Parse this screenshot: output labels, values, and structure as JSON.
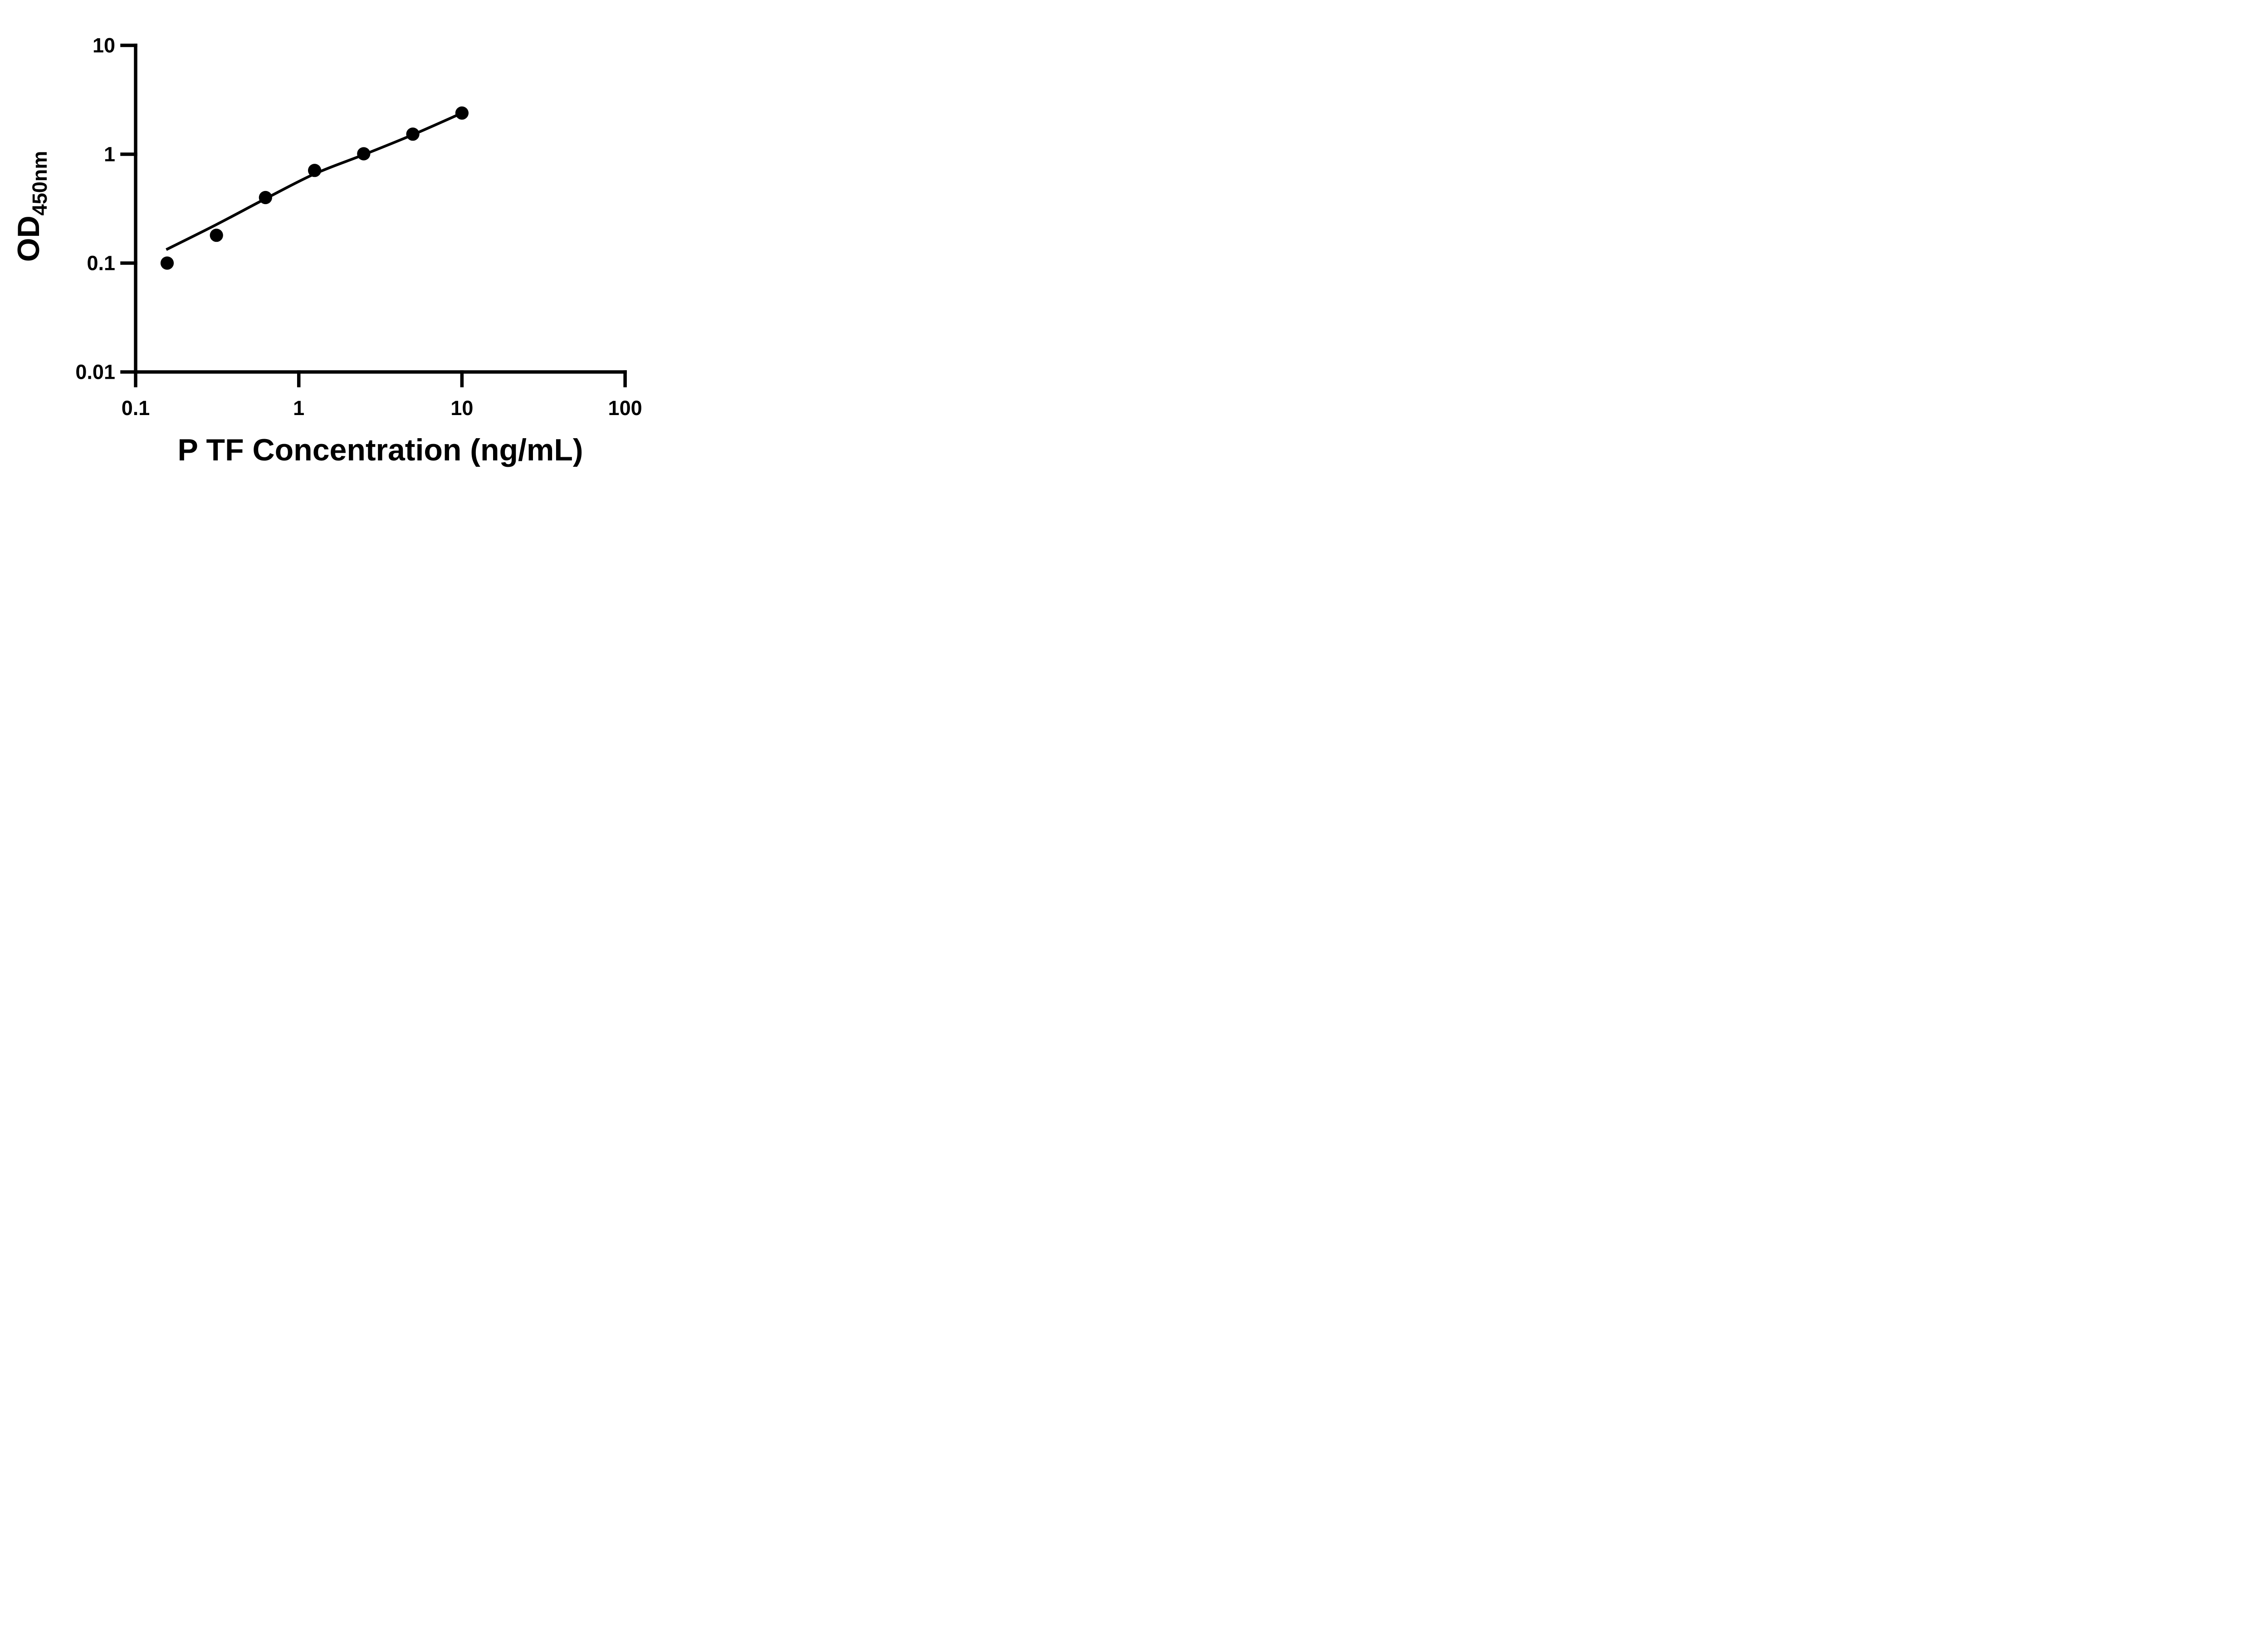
{
  "figure": {
    "kind": "ELISA standard curve plot",
    "background": "#ffffff"
  },
  "colors": {
    "foreground": "#000000",
    "background": "#ffffff"
  },
  "chart_data": {
    "type": "scatter",
    "title": "",
    "xlabel": "P TF Concentration (ng/mL)",
    "ylabel_base": "OD",
    "ylabel_subscript": "450nm",
    "x_scale": "log",
    "y_scale": "log",
    "xlim": [
      0.1,
      100
    ],
    "ylim": [
      0.01,
      10
    ],
    "grid": false,
    "legend": "none",
    "x_ticks": {
      "values": [
        0.1,
        1,
        10,
        100
      ],
      "labels": [
        "0.1",
        "1",
        "10",
        "100"
      ]
    },
    "y_ticks": {
      "values": [
        0.01,
        0.1,
        1,
        10
      ],
      "labels": [
        "0.01",
        "0.1",
        "1",
        "10"
      ]
    },
    "series": [
      {
        "name": "standard-curve-points",
        "marker": "circle",
        "color": "#000000",
        "points": [
          {
            "x": 0.156,
            "y": 0.1
          },
          {
            "x": 0.313,
            "y": 0.18
          },
          {
            "x": 0.625,
            "y": 0.4
          },
          {
            "x": 1.25,
            "y": 0.71
          },
          {
            "x": 2.5,
            "y": 1.01
          },
          {
            "x": 5,
            "y": 1.53
          },
          {
            "x": 10,
            "y": 2.39
          }
        ]
      }
    ],
    "trend_line": {
      "name": "fit-curve",
      "color": "#000000",
      "points": [
        [
          0.154,
          0.133
        ],
        [
          0.313,
          0.226
        ],
        [
          0.625,
          0.39
        ],
        [
          1.25,
          0.66
        ],
        [
          2.5,
          0.99
        ],
        [
          5,
          1.51
        ],
        [
          10,
          2.39
        ]
      ]
    }
  }
}
